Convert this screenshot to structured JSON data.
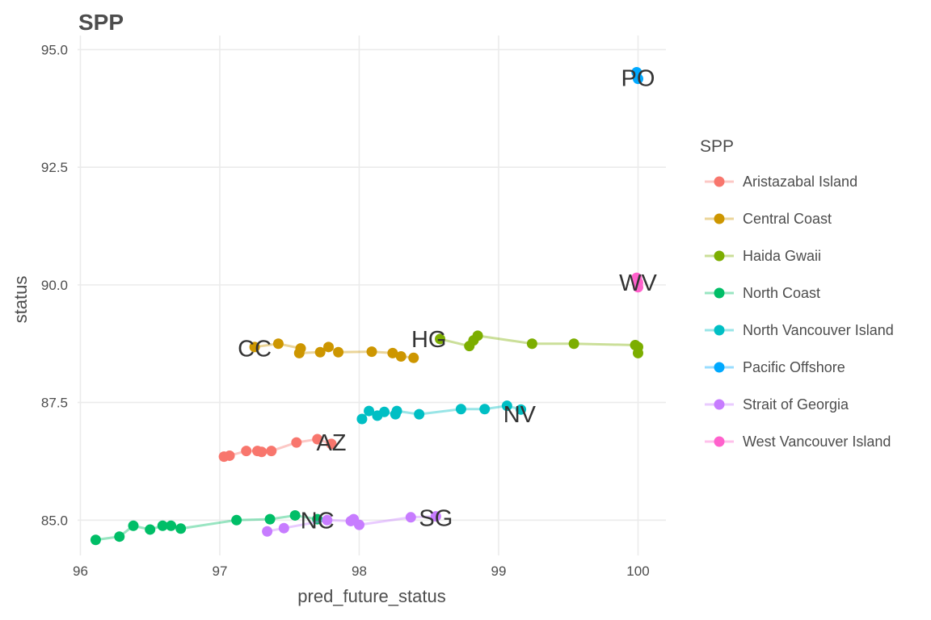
{
  "chart_data": {
    "type": "line",
    "title": "SPP",
    "xlabel": "pred_future_status",
    "ylabel": "status",
    "xlim": [
      95.98,
      100.2
    ],
    "ylim": [
      84.25,
      95.3
    ],
    "x_ticks": [
      96,
      97,
      98,
      99,
      100
    ],
    "y_ticks": [
      85.0,
      87.5,
      90.0,
      92.5,
      95.0
    ],
    "x_tick_labels": [
      "96",
      "97",
      "98",
      "99",
      "100"
    ],
    "y_tick_labels": [
      "85.0",
      "87.5",
      "90.0",
      "92.5",
      "95.0"
    ],
    "grid": true,
    "legend": {
      "title": "SPP",
      "position": "right"
    },
    "series": [
      {
        "name": "Aristazabal Island",
        "code": "AZ",
        "color": "#F8766D",
        "label_pos": [
          97.8,
          86.65
        ],
        "points": [
          [
            97.03,
            86.35
          ],
          [
            97.07,
            86.37
          ],
          [
            97.19,
            86.47
          ],
          [
            97.27,
            86.47
          ],
          [
            97.3,
            86.45
          ],
          [
            97.37,
            86.47
          ],
          [
            97.55,
            86.65
          ],
          [
            97.7,
            86.72
          ],
          [
            97.8,
            86.62
          ]
        ]
      },
      {
        "name": "Central Coast",
        "code": "CC",
        "color": "#CD9600",
        "label_pos": [
          97.25,
          88.65
        ],
        "points": [
          [
            97.25,
            88.68
          ],
          [
            97.42,
            88.75
          ],
          [
            97.58,
            88.65
          ],
          [
            97.57,
            88.55
          ],
          [
            97.72,
            88.57
          ],
          [
            97.78,
            88.68
          ],
          [
            97.85,
            88.57
          ],
          [
            98.09,
            88.58
          ],
          [
            98.24,
            88.55
          ],
          [
            98.3,
            88.48
          ],
          [
            98.39,
            88.45
          ]
        ]
      },
      {
        "name": "Haida Gwaii",
        "code": "HG",
        "color": "#7CAE00",
        "label_pos": [
          98.5,
          88.85
        ],
        "points": [
          [
            98.58,
            88.85
          ],
          [
            98.79,
            88.7
          ],
          [
            98.82,
            88.82
          ],
          [
            98.85,
            88.92
          ],
          [
            99.24,
            88.75
          ],
          [
            99.54,
            88.75
          ],
          [
            99.98,
            88.72
          ],
          [
            100.0,
            88.68
          ],
          [
            100.0,
            88.55
          ]
        ]
      },
      {
        "name": "North Coast",
        "code": "NC",
        "color": "#00BE67",
        "label_pos": [
          97.7,
          85.0
        ],
        "points": [
          [
            96.11,
            84.58
          ],
          [
            96.28,
            84.65
          ],
          [
            96.38,
            84.88
          ],
          [
            96.5,
            84.8
          ],
          [
            96.59,
            84.88
          ],
          [
            96.65,
            84.88
          ],
          [
            96.72,
            84.82
          ],
          [
            97.12,
            85.0
          ],
          [
            97.36,
            85.02
          ],
          [
            97.54,
            85.1
          ],
          [
            97.7,
            85.02
          ]
        ]
      },
      {
        "name": "North Vancouver Island",
        "code": "NV",
        "color": "#00BFC4",
        "label_pos": [
          99.15,
          87.25
        ],
        "points": [
          [
            98.02,
            87.15
          ],
          [
            98.07,
            87.32
          ],
          [
            98.13,
            87.22
          ],
          [
            98.18,
            87.3
          ],
          [
            98.26,
            87.25
          ],
          [
            98.27,
            87.32
          ],
          [
            98.43,
            87.25
          ],
          [
            98.73,
            87.36
          ],
          [
            98.9,
            87.36
          ],
          [
            99.06,
            87.43
          ],
          [
            99.16,
            87.35
          ]
        ]
      },
      {
        "name": "Pacific Offshore",
        "code": "PO",
        "color": "#00A9FF",
        "label_pos": [
          100.0,
          94.4
        ],
        "points": [
          [
            99.99,
            94.52
          ],
          [
            100.0,
            94.38
          ]
        ]
      },
      {
        "name": "Strait of Georgia",
        "code": "SG",
        "color": "#C77CFF",
        "label_pos": [
          98.55,
          85.05
        ],
        "points": [
          [
            97.34,
            84.76
          ],
          [
            97.46,
            84.83
          ],
          [
            97.77,
            85.0
          ],
          [
            97.94,
            84.98
          ],
          [
            97.96,
            85.02
          ],
          [
            98.0,
            84.9
          ],
          [
            98.37,
            85.06
          ],
          [
            98.55,
            85.08
          ]
        ]
      },
      {
        "name": "West Vancouver Island",
        "code": "WV",
        "color": "#FF61CC",
        "label_pos": [
          100.0,
          90.05
        ],
        "points": [
          [
            99.99,
            90.15
          ],
          [
            100.0,
            90.05
          ],
          [
            100.0,
            89.95
          ]
        ]
      }
    ]
  }
}
